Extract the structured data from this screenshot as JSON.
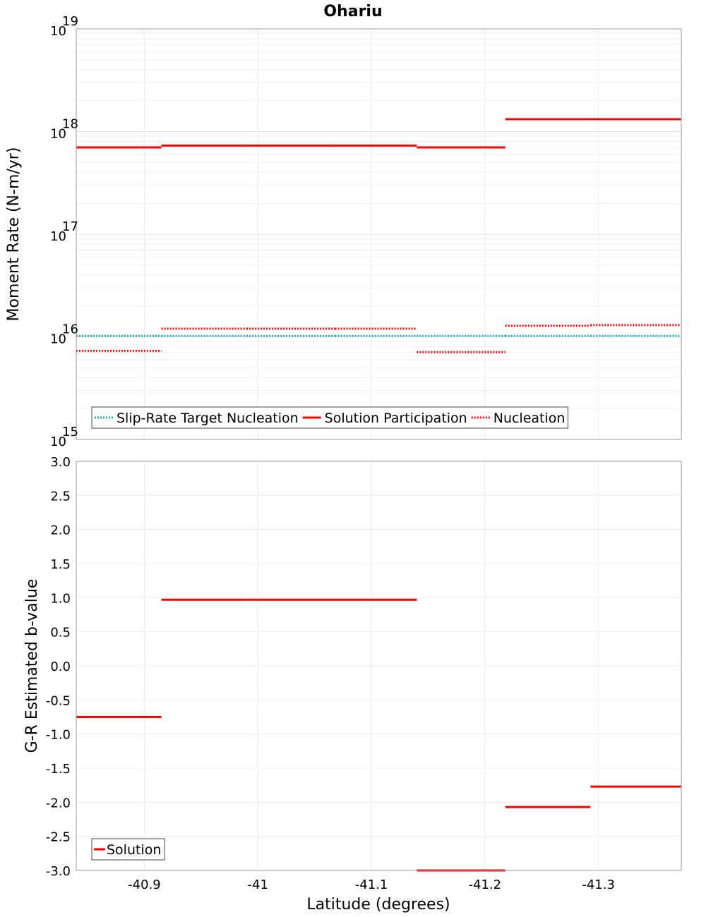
{
  "title": "Ohariu",
  "chart_data": [
    {
      "type": "line",
      "panel": "top",
      "ylabel": "Moment Rate (N-m/yr)",
      "yscale": "log",
      "ylim": [
        1000000000000000.0,
        1e+19
      ],
      "xlim": [
        -40.84,
        -41.373
      ],
      "y_ticks": [
        {
          "base": "10",
          "exp": "15",
          "value": 1000000000000000.0
        },
        {
          "base": "10",
          "exp": "16",
          "value": 1e+16
        },
        {
          "base": "10",
          "exp": "17",
          "value": 1e+17
        },
        {
          "base": "10",
          "exp": "18",
          "value": 1e+18
        },
        {
          "base": "10",
          "exp": "19",
          "value": 1e+19
        }
      ],
      "grid": true,
      "legend_placement": "bottom-left",
      "legend": [
        "Slip-Rate Target Nucleation",
        "Solution Participation",
        "Nucleation"
      ],
      "series": [
        {
          "name": "Slip-Rate Target Nucleation",
          "color": "#17b3c4",
          "style": "dotted",
          "segments": [
            {
              "x0": -40.84,
              "x1": -40.915,
              "y": 1.02e+16
            },
            {
              "x0": -40.915,
              "x1": -40.99,
              "y": 1.02e+16
            },
            {
              "x0": -40.99,
              "x1": -41.068,
              "y": 1.02e+16
            },
            {
              "x0": -41.068,
              "x1": -41.14,
              "y": 1.02e+16
            },
            {
              "x0": -41.14,
              "x1": -41.218,
              "y": 1.02e+16
            },
            {
              "x0": -41.218,
              "x1": -41.293,
              "y": 1.02e+16
            },
            {
              "x0": -41.293,
              "x1": -41.373,
              "y": 1.02e+16
            }
          ]
        },
        {
          "name": "Solution Participation",
          "color": "#ff0000",
          "style": "solid",
          "segments": [
            {
              "x0": -40.84,
              "x1": -40.915,
              "y": 7e+17
            },
            {
              "x0": -40.915,
              "x1": -40.99,
              "y": 7.3e+17
            },
            {
              "x0": -40.99,
              "x1": -41.068,
              "y": 7.3e+17
            },
            {
              "x0": -41.068,
              "x1": -41.14,
              "y": 7.3e+17
            },
            {
              "x0": -41.14,
              "x1": -41.218,
              "y": 7e+17
            },
            {
              "x0": -41.218,
              "x1": -41.293,
              "y": 1.32e+18
            },
            {
              "x0": -41.293,
              "x1": -41.373,
              "y": 1.32e+18
            }
          ]
        },
        {
          "name": "Nucleation",
          "color": "#ff0000",
          "style": "dotted",
          "segments": [
            {
              "x0": -40.84,
              "x1": -40.915,
              "y": 7300000000000000.0
            },
            {
              "x0": -40.915,
              "x1": -40.99,
              "y": 1.2e+16
            },
            {
              "x0": -40.99,
              "x1": -41.068,
              "y": 1.2e+16
            },
            {
              "x0": -41.068,
              "x1": -41.14,
              "y": 1.2e+16
            },
            {
              "x0": -41.14,
              "x1": -41.218,
              "y": 7100000000000000.0
            },
            {
              "x0": -41.218,
              "x1": -41.293,
              "y": 1.28e+16
            },
            {
              "x0": -41.293,
              "x1": -41.373,
              "y": 1.3e+16
            }
          ]
        }
      ]
    },
    {
      "type": "line",
      "panel": "bottom",
      "xlabel": "Latitude (degrees)",
      "ylabel": "G-R Estimated b-value",
      "ylim": [
        -3.0,
        3.0
      ],
      "xlim": [
        -40.84,
        -41.373
      ],
      "x_ticks": [
        "-40.9",
        "-41",
        "-41.1",
        "-41.2",
        "-41.3"
      ],
      "x_tick_values": [
        -40.9,
        -41.0,
        -41.1,
        -41.2,
        -41.3
      ],
      "y_ticks": [
        "3.0",
        "2.5",
        "2.0",
        "1.5",
        "1.0",
        "0.5",
        "0.0",
        "-0.5",
        "-1.0",
        "-1.5",
        "-2.0",
        "-2.5",
        "-3.0"
      ],
      "y_tick_values": [
        3.0,
        2.5,
        2.0,
        1.5,
        1.0,
        0.5,
        0.0,
        -0.5,
        -1.0,
        -1.5,
        -2.0,
        -2.5,
        -3.0
      ],
      "grid": true,
      "legend_placement": "bottom-left",
      "legend": [
        "Solution"
      ],
      "series": [
        {
          "name": "Solution",
          "color": "#ff0000",
          "style": "solid",
          "segments": [
            {
              "x0": -40.84,
              "x1": -40.915,
              "y": -0.75
            },
            {
              "x0": -40.915,
              "x1": -40.99,
              "y": 0.97
            },
            {
              "x0": -40.99,
              "x1": -41.068,
              "y": 0.97
            },
            {
              "x0": -41.068,
              "x1": -41.14,
              "y": 0.97
            },
            {
              "x0": -41.14,
              "x1": -41.218,
              "y": -3.0
            },
            {
              "x0": -41.218,
              "x1": -41.293,
              "y": -2.07
            },
            {
              "x0": -41.293,
              "x1": -41.373,
              "y": -1.77
            }
          ]
        }
      ]
    }
  ]
}
